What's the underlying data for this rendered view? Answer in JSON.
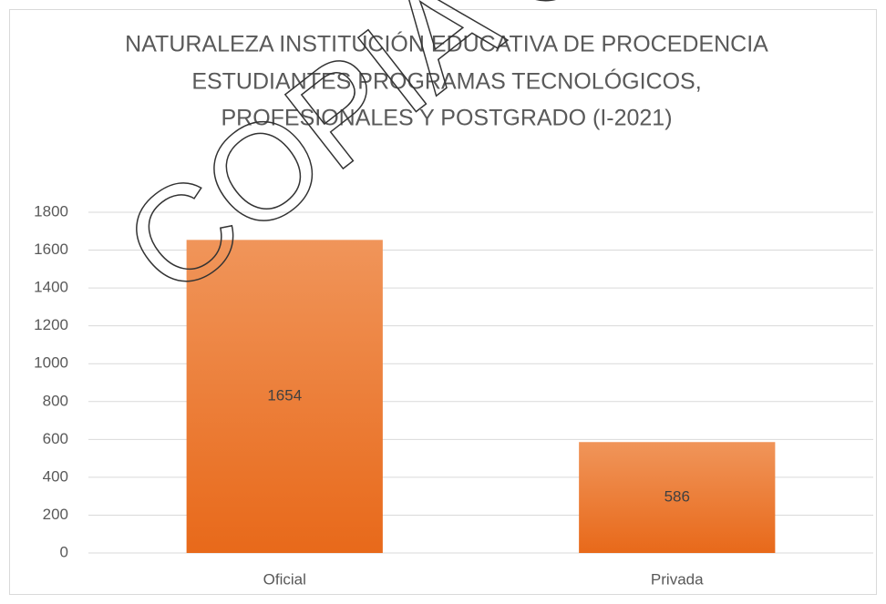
{
  "chart_data": {
    "type": "bar",
    "title": [
      "NATURALEZA INSTITUCIÓN EDUCATIVA DE PROCEDENCIA",
      "ESTUDIANTES PROGRAMAS TECNOLÓGICOS,",
      "PROFESIONALES Y POSTGRADO (I-2021)"
    ],
    "watermark": "COPIA C",
    "categories": [
      "Oficial",
      "Privada"
    ],
    "values": [
      1654,
      586
    ],
    "color": "#ed7d31",
    "ylim": [
      0,
      1800
    ],
    "yticks": [
      0,
      200,
      400,
      600,
      800,
      1000,
      1200,
      1400,
      1600,
      1800
    ],
    "grid": true
  }
}
